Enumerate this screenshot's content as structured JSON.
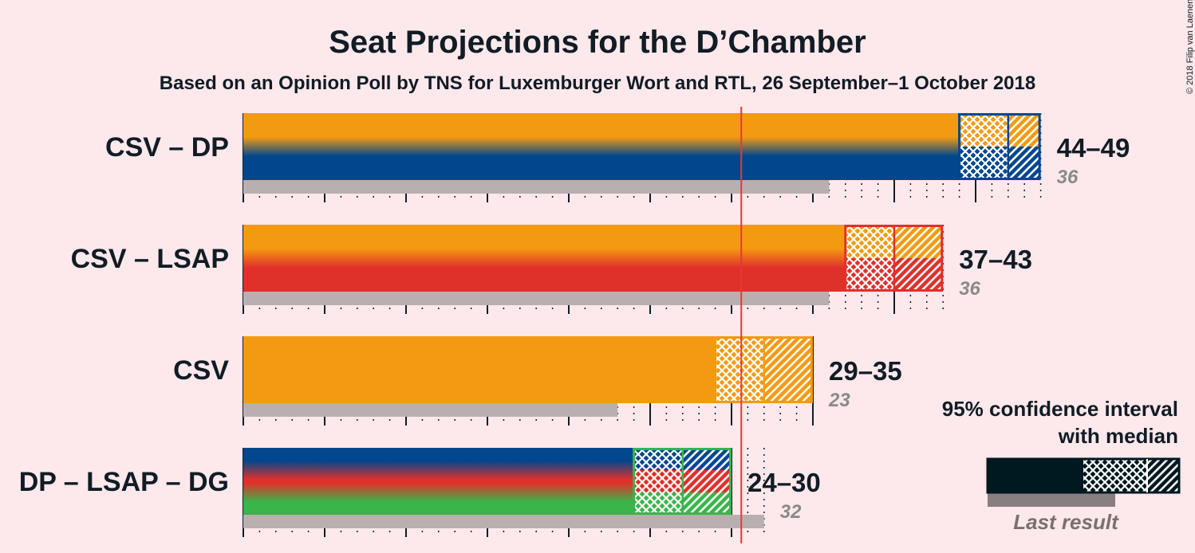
{
  "title": "Seat Projections for the D’Chamber",
  "subtitle": "Based on an Opinion Poll by TNS for Luxemburger Wort and RTL, 26 September–1 October 2018",
  "copyright": "© 2018 Filip van Laenen",
  "majority": 31,
  "colors": {
    "CSV": "#f39a12",
    "DP": "#00478e",
    "LSAP": "#e0302a",
    "DG": "#39b54a",
    "last": "#b8b0b0",
    "majority": "#e53935",
    "legend": "#001820"
  },
  "chart_data": {
    "type": "bar",
    "categories": [
      "CSV – DP",
      "CSV – LSAP",
      "CSV",
      "DP – LSAP – DG"
    ],
    "series": [
      {
        "parties": [
          "CSV",
          "DP"
        ],
        "low": 44,
        "median": 47,
        "high": 49,
        "range_label": "44–49",
        "last": 36,
        "last_label": "36"
      },
      {
        "parties": [
          "CSV",
          "LSAP"
        ],
        "low": 37,
        "median": 40,
        "high": 43,
        "range_label": "37–43",
        "last": 36,
        "last_label": "36"
      },
      {
        "parties": [
          "CSV"
        ],
        "low": 29,
        "median": 32,
        "high": 35,
        "range_label": "29–35",
        "last": 23,
        "last_label": "23"
      },
      {
        "parties": [
          "DP",
          "LSAP",
          "DG"
        ],
        "low": 24,
        "median": 27,
        "high": 30,
        "range_label": "24–30",
        "last": 32,
        "last_label": "32"
      }
    ],
    "xlim": [
      0,
      49
    ]
  },
  "legend": {
    "line1": "95% confidence interval",
    "line2": "with median",
    "last_result": "Last result"
  }
}
